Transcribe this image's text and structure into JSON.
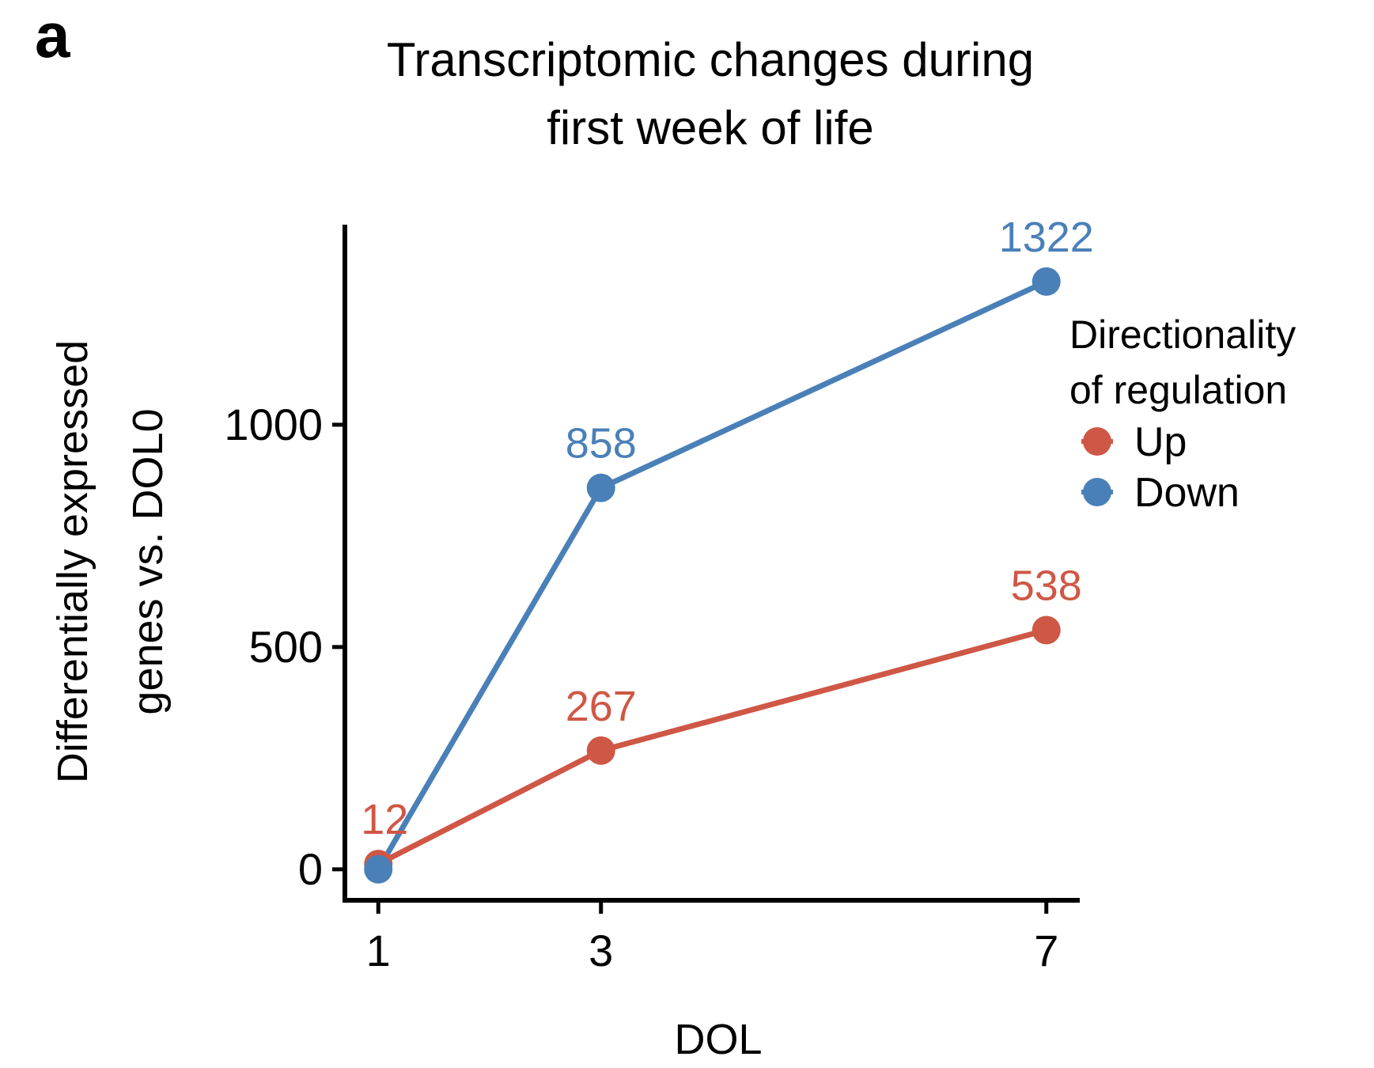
{
  "panel_label": "a",
  "colors": {
    "Up": "#cf5745",
    "Down": "#4a80b8",
    "axis": "#000000"
  },
  "chart_data": {
    "type": "line",
    "title": "Transcriptomic changes during first week of life",
    "title_lines": [
      "Transcriptomic changes during",
      "first week of life"
    ],
    "xlabel": "DOL",
    "ylabel_lines": [
      "Differentially expressed",
      "genes vs. DOL0"
    ],
    "x": [
      1,
      3,
      7
    ],
    "x_ticks": [
      1,
      3,
      7
    ],
    "xlim": [
      0.7,
      7.3
    ],
    "y_ticks": [
      0,
      500,
      1000
    ],
    "ylim": [
      -75,
      1450
    ],
    "legend": {
      "title_lines": [
        "Directionality",
        "of regulation"
      ],
      "position": "right"
    },
    "series": [
      {
        "name": "Up",
        "values": [
          12,
          267,
          538
        ],
        "labels": [
          "12",
          "267",
          "538"
        ]
      },
      {
        "name": "Down",
        "values": [
          0,
          858,
          1322
        ],
        "labels": [
          "",
          "858",
          "1322"
        ]
      }
    ],
    "grid": false
  }
}
